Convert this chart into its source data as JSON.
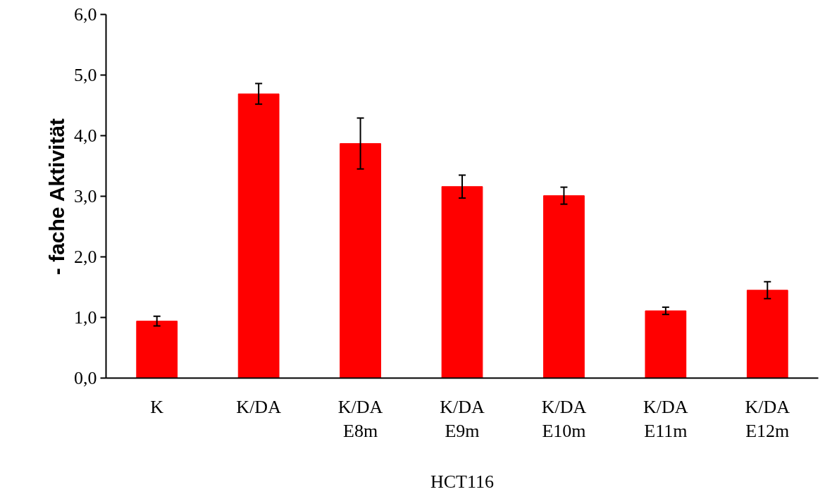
{
  "chart_data": {
    "type": "bar",
    "ylabel": "- fache Aktivität",
    "xlabel": "HCT116",
    "categories": [
      "K",
      "K/DA",
      "K/DA\nE8m",
      "K/DA\nE9m",
      "K/DA\nE10m",
      "K/DA\nE11m",
      "K/DA\nE12m"
    ],
    "values": [
      0.94,
      4.69,
      3.87,
      3.16,
      3.01,
      1.11,
      1.45
    ],
    "errors": [
      0.08,
      0.17,
      0.42,
      0.19,
      0.14,
      0.06,
      0.14
    ],
    "color": "#ff0000",
    "ylim": [
      0,
      6
    ],
    "yticks": [
      {
        "value": 0,
        "label": "0,0"
      },
      {
        "value": 1,
        "label": "1,0"
      },
      {
        "value": 2,
        "label": "2,0"
      },
      {
        "value": 3,
        "label": "3,0"
      },
      {
        "value": 4,
        "label": "4,0"
      },
      {
        "value": 5,
        "label": "5,0"
      },
      {
        "value": 6,
        "label": "6,0"
      }
    ],
    "grid": false
  }
}
